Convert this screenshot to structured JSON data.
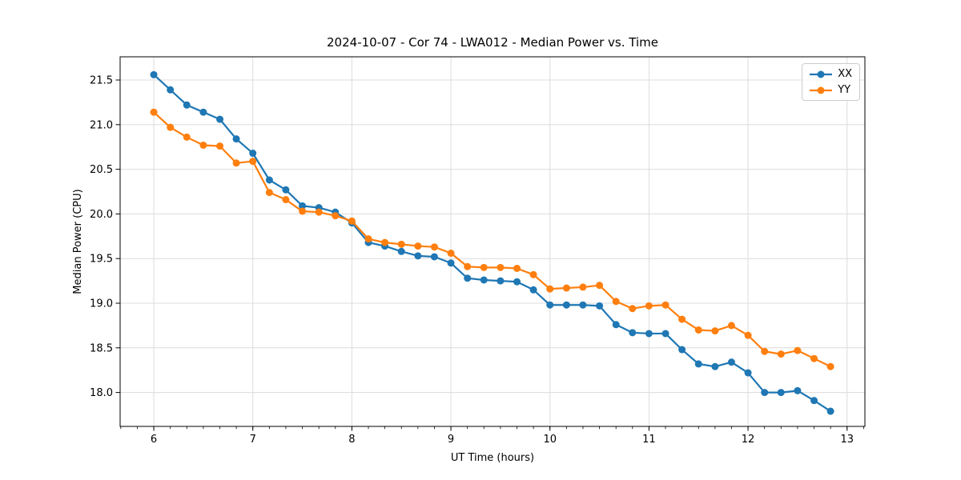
{
  "chart_data": {
    "type": "line",
    "title": "2024-10-07 - Cor 74 - LWA012 - Median Power vs. Time",
    "xlabel": "UT Time (hours)",
    "ylabel": "Median Power (CPU)",
    "xlim": [
      5.66,
      13.18
    ],
    "ylim": [
      17.62,
      21.76
    ],
    "grid": true,
    "legend_position": "upper right",
    "x_major_ticks": [
      6,
      7,
      8,
      9,
      10,
      11,
      12,
      13
    ],
    "x_tick_labels": [
      "6",
      "7",
      "8",
      "9",
      "10",
      "11",
      "12",
      "13"
    ],
    "y_major_ticks": [
      18.0,
      18.5,
      19.0,
      19.5,
      20.0,
      20.5,
      21.0,
      21.5
    ],
    "y_tick_labels": [
      "18.0",
      "18.5",
      "19.0",
      "19.5",
      "20.0",
      "20.5",
      "21.0",
      "21.5"
    ],
    "x_minor_tick_step": 0.166667,
    "x": [
      6.0,
      6.167,
      6.333,
      6.5,
      6.667,
      6.833,
      7.0,
      7.167,
      7.333,
      7.5,
      7.667,
      7.833,
      8.0,
      8.167,
      8.333,
      8.5,
      8.667,
      8.833,
      9.0,
      9.167,
      9.333,
      9.5,
      9.667,
      9.833,
      10.0,
      10.167,
      10.333,
      10.5,
      10.667,
      10.833,
      11.0,
      11.167,
      11.333,
      11.5,
      11.667,
      11.833,
      12.0,
      12.167,
      12.333,
      12.5,
      12.667,
      12.833
    ],
    "series": [
      {
        "name": "XX",
        "color": "#1f77b4",
        "values": [
          21.56,
          21.39,
          21.22,
          21.14,
          21.06,
          20.84,
          20.68,
          20.38,
          20.27,
          20.09,
          20.07,
          20.02,
          19.9,
          19.68,
          19.64,
          19.58,
          19.53,
          19.52,
          19.45,
          19.28,
          19.26,
          19.25,
          19.24,
          19.15,
          18.98,
          18.98,
          18.98,
          18.97,
          18.76,
          18.67,
          18.66,
          18.66,
          18.48,
          18.32,
          18.29,
          18.34,
          18.22,
          18.0,
          18.0,
          18.02,
          17.91,
          17.79
        ]
      },
      {
        "name": "YY",
        "color": "#ff7f0e",
        "values": [
          21.14,
          20.97,
          20.86,
          20.77,
          20.76,
          20.57,
          20.59,
          20.24,
          20.16,
          20.03,
          20.02,
          19.98,
          19.92,
          19.72,
          19.68,
          19.66,
          19.64,
          19.63,
          19.56,
          19.41,
          19.4,
          19.4,
          19.39,
          19.32,
          19.16,
          19.17,
          19.18,
          19.2,
          19.02,
          18.94,
          18.97,
          18.98,
          18.82,
          18.7,
          18.69,
          18.75,
          18.64,
          18.46,
          18.43,
          18.47,
          18.38,
          18.29
        ]
      }
    ],
    "style": {
      "grid_color": "#dcdcdc",
      "spine_color": "#000000",
      "marker_radius": 4.5,
      "line_width": 2.2
    }
  }
}
